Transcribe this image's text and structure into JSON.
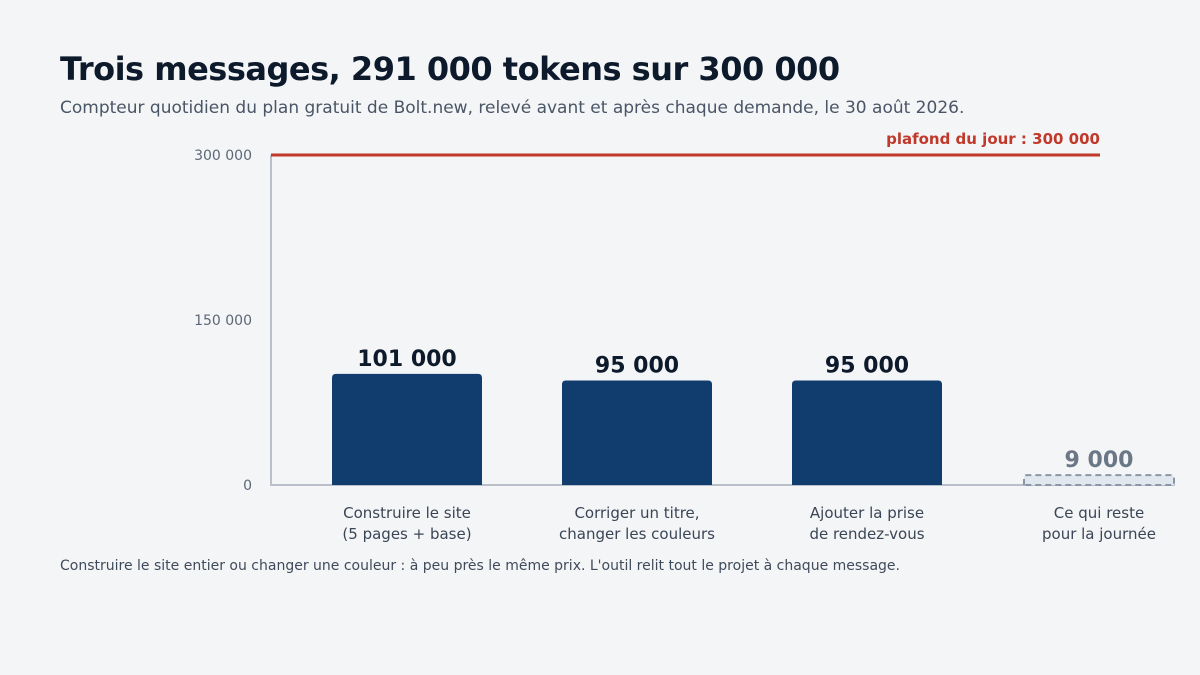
{
  "header": {
    "title": "Trois messages, 291 000 tokens sur 300 000",
    "subtitle": "Compteur quotidien du plan gratuit de Bolt.new, relevé avant et après chaque demande, le 30 août 2026."
  },
  "footnote": "Construire le site entier ou changer une couleur : à peu près le même prix. L'outil relit tout le projet à chaque message.",
  "chart_data": {
    "type": "bar",
    "categories": [
      [
        "Construire le site",
        "(5 pages + base)"
      ],
      [
        "Corriger un titre,",
        "changer les couleurs"
      ],
      [
        "Ajouter la prise",
        "de rendez-vous"
      ],
      [
        "Ce qui reste",
        "pour la journée"
      ]
    ],
    "values": [
      101000,
      95000,
      95000,
      9000
    ],
    "value_labels": [
      "101 000",
      "95 000",
      "95 000",
      "9 000"
    ],
    "bar_kinds": [
      "used",
      "used",
      "used",
      "remaining"
    ],
    "ylim": [
      0,
      300000
    ],
    "yticks": [
      0,
      150000,
      300000
    ],
    "ytick_labels": [
      "0",
      "150 000",
      "300 000"
    ],
    "cap": {
      "value": 300000,
      "label": "plafond du jour : 300 000"
    },
    "grid": false,
    "colors": {
      "used": "#113d6e",
      "remaining_fill": "#e1e7ee",
      "remaining_stroke": "#8a96a6",
      "cap": "#c0392b",
      "axis": "#b9c0ca"
    }
  }
}
